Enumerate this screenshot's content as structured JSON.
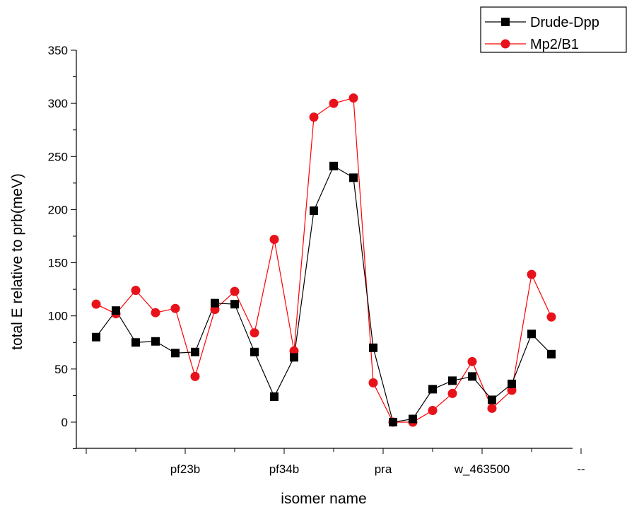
{
  "chart_data": {
    "type": "line",
    "xlabel": "isomer name",
    "ylabel": "total E relative to prb(meV)",
    "ylim": [
      -25,
      350
    ],
    "yticks": [
      0,
      50,
      100,
      150,
      200,
      250,
      300,
      350
    ],
    "xtick_labels": [
      {
        "index": 4.5,
        "label": "pf23b"
      },
      {
        "index": 9.5,
        "label": "pf34b"
      },
      {
        "index": 14.5,
        "label": "pra"
      },
      {
        "index": 19.5,
        "label": "w_463500"
      },
      {
        "index": 24.5,
        "label": "--"
      }
    ],
    "legend_position": "top-right",
    "colors": {
      "drude": "#000000",
      "mp2": "#ff0000",
      "mp2_marker": "#e8121b"
    },
    "series": [
      {
        "name": "Drude-Dpp",
        "marker": "square",
        "values": [
          80,
          105,
          75,
          76,
          65,
          66,
          112,
          111,
          66,
          24,
          61,
          199,
          241,
          230,
          70,
          0,
          3,
          31,
          39,
          43,
          21,
          36,
          83,
          64
        ]
      },
      {
        "name": "Mp2/B1",
        "marker": "circle",
        "values": [
          111,
          102,
          124,
          103,
          107,
          43,
          106,
          123,
          84,
          172,
          67,
          287,
          300,
          305,
          37,
          0,
          0,
          11,
          27,
          57,
          13,
          30,
          139,
          99
        ]
      }
    ]
  }
}
